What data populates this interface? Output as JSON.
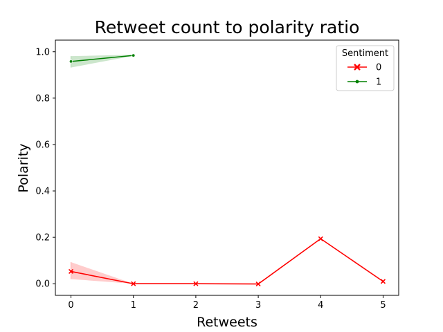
{
  "chart_data": {
    "type": "line",
    "title": "Retweet count to polarity ratio",
    "xlabel": "Retweets",
    "ylabel": "Polarity",
    "xlim": [
      -0.25,
      5.25
    ],
    "ylim": [
      -0.05,
      1.05
    ],
    "xticks": [
      "0",
      "1",
      "2",
      "3",
      "4",
      "5"
    ],
    "yticks": [
      "0.0",
      "0.2",
      "0.4",
      "0.6",
      "0.8",
      "1.0"
    ],
    "grid": false,
    "legend": {
      "title": "Sentiment",
      "placement": "top-right"
    },
    "series": [
      {
        "name": "0",
        "color": "#ff0000",
        "marker": "x",
        "x": [
          0,
          1,
          2,
          3,
          4,
          5
        ],
        "y": [
          0.053,
          0.0,
          0.0,
          -0.001,
          0.194,
          0.01
        ],
        "ci_low": [
          0.02,
          0.0,
          0.0,
          -0.001,
          0.194,
          0.01
        ],
        "ci_high": [
          0.093,
          0.0,
          0.0,
          -0.001,
          0.194,
          0.01
        ]
      },
      {
        "name": "1",
        "color": "#008000",
        "marker": "o",
        "x": [
          0,
          1
        ],
        "y": [
          0.958,
          0.984
        ],
        "ci_low": [
          0.932,
          0.982
        ],
        "ci_high": [
          0.981,
          0.987
        ]
      }
    ]
  }
}
